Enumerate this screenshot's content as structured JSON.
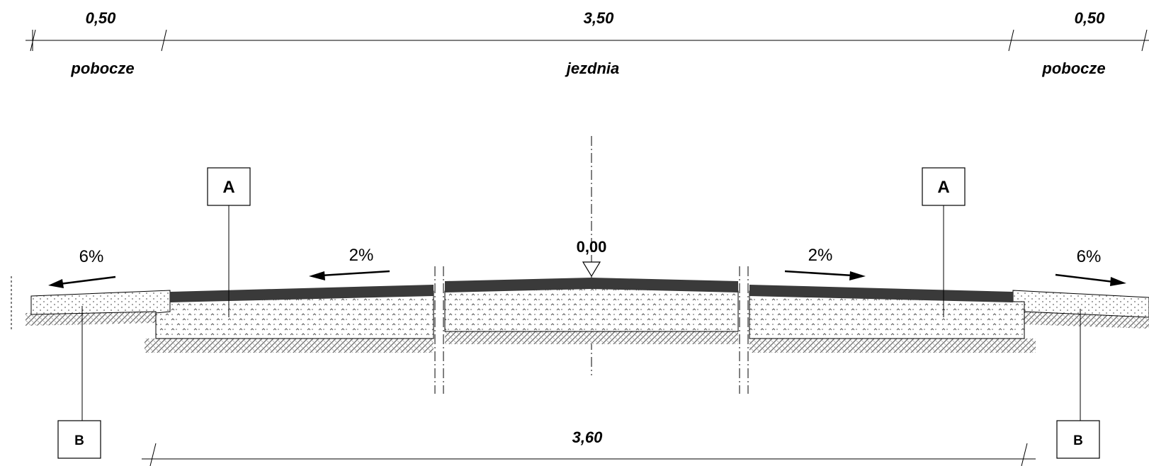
{
  "dimensions": {
    "top_left_width": "0,50",
    "top_center_width": "3,50",
    "top_right_width": "0,50",
    "bottom_width": "3,60"
  },
  "zones": {
    "left_label": "pobocze",
    "center_label": "jezdnia",
    "right_label": "pobocze"
  },
  "slopes": {
    "left_shoulder": "6%",
    "left_lane": "2%",
    "right_lane": "2%",
    "right_shoulder": "6%"
  },
  "elevation": "0,00",
  "tags": {
    "a_left": "A",
    "a_right": "A",
    "b_left": "B",
    "b_right": "B"
  },
  "colors": {
    "line": "#000000",
    "asphalt": "#3a3a3a",
    "background": "#ffffff"
  }
}
